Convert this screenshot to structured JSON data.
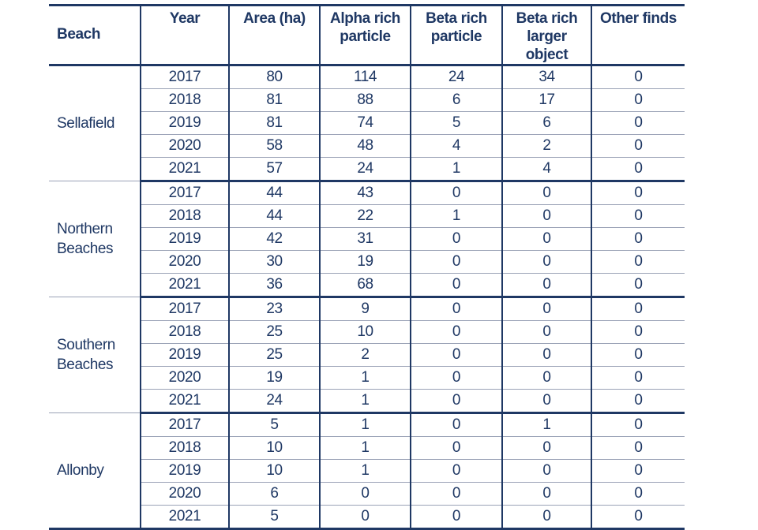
{
  "chart_data": {
    "type": "table",
    "columns": [
      "Beach",
      "Year",
      "Area (ha)",
      "Alpha rich particle",
      "Beta rich particle",
      "Beta rich larger object",
      "Other finds"
    ],
    "groups": [
      {
        "beach": "Sellafield",
        "rows": [
          [
            "2017",
            "80",
            "114",
            "24",
            "34",
            "0"
          ],
          [
            "2018",
            "81",
            "88",
            "6",
            "17",
            "0"
          ],
          [
            "2019",
            "81",
            "74",
            "5",
            "6",
            "0"
          ],
          [
            "2020",
            "58",
            "48",
            "4",
            "2",
            "0"
          ],
          [
            "2021",
            "57",
            "24",
            "1",
            "4",
            "0"
          ]
        ]
      },
      {
        "beach": "Northern Beaches",
        "rows": [
          [
            "2017",
            "44",
            "43",
            "0",
            "0",
            "0"
          ],
          [
            "2018",
            "44",
            "22",
            "1",
            "0",
            "0"
          ],
          [
            "2019",
            "42",
            "31",
            "0",
            "0",
            "0"
          ],
          [
            "2020",
            "30",
            "19",
            "0",
            "0",
            "0"
          ],
          [
            "2021",
            "36",
            "68",
            "0",
            "0",
            "0"
          ]
        ]
      },
      {
        "beach": "Southern Beaches",
        "rows": [
          [
            "2017",
            "23",
            "9",
            "0",
            "0",
            "0"
          ],
          [
            "2018",
            "25",
            "10",
            "0",
            "0",
            "0"
          ],
          [
            "2019",
            "25",
            "2",
            "0",
            "0",
            "0"
          ],
          [
            "2020",
            "19",
            "1",
            "0",
            "0",
            "0"
          ],
          [
            "2021",
            "24",
            "1",
            "0",
            "0",
            "0"
          ]
        ]
      },
      {
        "beach": "Allonby",
        "rows": [
          [
            "2017",
            "5",
            "1",
            "0",
            "1",
            "0"
          ],
          [
            "2018",
            "10",
            "1",
            "0",
            "0",
            "0"
          ],
          [
            "2019",
            "10",
            "1",
            "0",
            "0",
            "0"
          ],
          [
            "2020",
            "6",
            "0",
            "0",
            "0",
            "0"
          ],
          [
            "2021",
            "5",
            "0",
            "0",
            "0",
            "0"
          ]
        ]
      }
    ]
  },
  "colors": {
    "text_navy": "#1f3864",
    "border_navy": "#1f3864",
    "row_divider": "#9aa2b6",
    "background": "#ffffff"
  }
}
